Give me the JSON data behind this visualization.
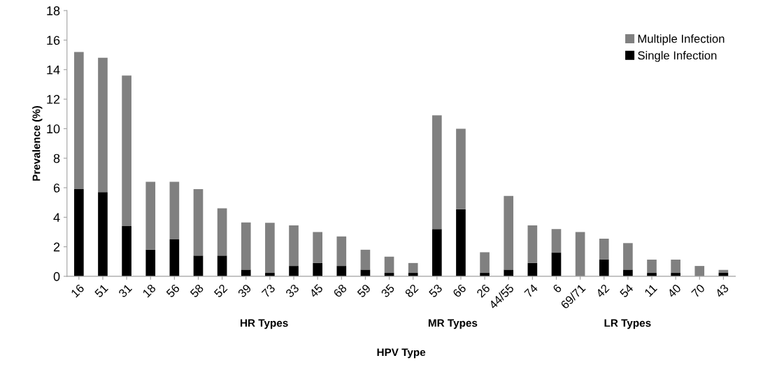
{
  "chart_data": {
    "type": "bar",
    "stacked": true,
    "categories": [
      "16",
      "51",
      "31",
      "18",
      "56",
      "58",
      "52",
      "39",
      "73",
      "33",
      "45",
      "68",
      "59",
      "35",
      "82",
      "53",
      "66",
      "26",
      "44/55",
      "74",
      "6",
      "69/71",
      "42",
      "54",
      "11",
      "40",
      "70",
      "43"
    ],
    "series": [
      {
        "name": "Single Infection",
        "color": "#000000",
        "values": [
          5.9,
          5.7,
          3.4,
          1.8,
          2.5,
          1.4,
          1.4,
          0.45,
          0.23,
          0.7,
          0.9,
          0.7,
          0.45,
          0.23,
          0.23,
          3.2,
          4.55,
          0.23,
          0.45,
          0.9,
          1.6,
          0,
          1.15,
          0.45,
          0.23,
          0.23,
          0,
          0.23
        ]
      },
      {
        "name": "Multiple Infection",
        "color": "#808080",
        "values": [
          9.3,
          9.1,
          10.2,
          4.6,
          3.9,
          4.5,
          3.2,
          3.2,
          3.4,
          2.75,
          2.1,
          2.0,
          1.35,
          1.1,
          0.67,
          7.7,
          5.45,
          1.4,
          5.0,
          2.55,
          1.6,
          3.0,
          1.4,
          1.8,
          0.9,
          0.9,
          0.7,
          0.2
        ]
      }
    ],
    "xlabel": "HPV Type",
    "ylabel": "Prevalence (%)",
    "ylim": [
      0,
      18
    ],
    "yticks": [
      0,
      2,
      4,
      6,
      8,
      10,
      12,
      14,
      16,
      18
    ],
    "annotations": [
      "HR Types",
      "MR Types",
      "LR Types"
    ],
    "legend": "top right",
    "grid": false
  }
}
